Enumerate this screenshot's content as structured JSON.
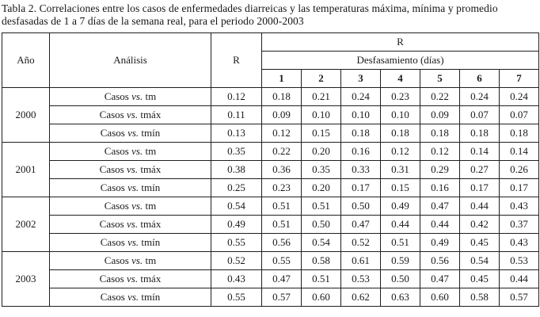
{
  "page": {
    "caption": "Tabla 2. Correlaciones entre los casos de enfermedades diarreicas y las temperaturas máxima, mínima y promedio desfasadas de 1 a 7 días de la semana real, para el periodo 2000-2003"
  },
  "table": {
    "headers": {
      "year": "Año",
      "analysis": "Análisis",
      "r": "R",
      "r_group": "R",
      "lag_group": "Desfasamiento (días)",
      "days": [
        "1",
        "2",
        "3",
        "4",
        "5",
        "6",
        "7"
      ]
    },
    "groups": [
      {
        "year": "2000",
        "rows": [
          {
            "label_pre": "Casos",
            "label_vs": "vs.",
            "label_post": "tm",
            "r": "0.12",
            "lags": [
              "0.18",
              "0.21",
              "0.24",
              "0.23",
              "0.22",
              "0.24",
              "0.24"
            ]
          },
          {
            "label_pre": "Casos",
            "label_vs": "vs.",
            "label_post": "tmáx",
            "r": "0.11",
            "lags": [
              "0.09",
              "0.10",
              "0.10",
              "0.10",
              "0.09",
              "0.07",
              "0.07"
            ]
          },
          {
            "label_pre": "Casos",
            "label_vs": "vs.",
            "label_post": "tmín",
            "r": "0.13",
            "lags": [
              "0.12",
              "0.15",
              "0.18",
              "0.18",
              "0.18",
              "0.18",
              "0.18"
            ]
          }
        ]
      },
      {
        "year": "2001",
        "rows": [
          {
            "label_pre": "Casos",
            "label_vs": "vs.",
            "label_post": "tm",
            "r": "0.35",
            "lags": [
              "0.22",
              "0.20",
              "0.16",
              "0.12",
              "0.12",
              "0.14",
              "0.14"
            ]
          },
          {
            "label_pre": "Casos",
            "label_vs": "vs.",
            "label_post": "tmáx",
            "r": "0.38",
            "lags": [
              "0.36",
              "0.35",
              "0.33",
              "0.31",
              "0.29",
              "0.27",
              "0.26"
            ]
          },
          {
            "label_pre": "Casos",
            "label_vs": "vs.",
            "label_post": "tmín",
            "r": "0.25",
            "lags": [
              "0.23",
              "0.20",
              "0.17",
              "0.15",
              "0.16",
              "0.17",
              "0.17"
            ]
          }
        ]
      },
      {
        "year": "2002",
        "rows": [
          {
            "label_pre": "Casos",
            "label_vs": "vs.",
            "label_post": "tm",
            "r": "0.54",
            "lags": [
              "0.51",
              "0.51",
              "0.50",
              "0.49",
              "0.47",
              "0.44",
              "0.43"
            ]
          },
          {
            "label_pre": "Casos",
            "label_vs": "vs.",
            "label_post": "tmáx",
            "r": "0.49",
            "lags": [
              "0.51",
              "0.50",
              "0.47",
              "0.44",
              "0.44",
              "0.42",
              "0.37"
            ]
          },
          {
            "label_pre": "Casos",
            "label_vs": "vs.",
            "label_post": "tmín",
            "r": "0.55",
            "lags": [
              "0.56",
              "0.54",
              "0.52",
              "0.51",
              "0.49",
              "0.45",
              "0.43"
            ]
          }
        ]
      },
      {
        "year": "2003",
        "rows": [
          {
            "label_pre": "Casos",
            "label_vs": "vs.",
            "label_post": "tm",
            "r": "0.52",
            "lags": [
              "0.55",
              "0.58",
              "0.61",
              "0.59",
              "0.56",
              "0.54",
              "0.53"
            ]
          },
          {
            "label_pre": "Casos",
            "label_vs": "vs.",
            "label_post": "tmáx",
            "r": "0.43",
            "lags": [
              "0.47",
              "0.51",
              "0.53",
              "0.50",
              "0.47",
              "0.45",
              "0.44"
            ]
          },
          {
            "label_pre": "Casos",
            "label_vs": "vs.",
            "label_post": "tmín",
            "r": "0.55",
            "lags": [
              "0.57",
              "0.60",
              "0.62",
              "0.63",
              "0.60",
              "0.58",
              "0.57"
            ]
          }
        ]
      }
    ]
  }
}
